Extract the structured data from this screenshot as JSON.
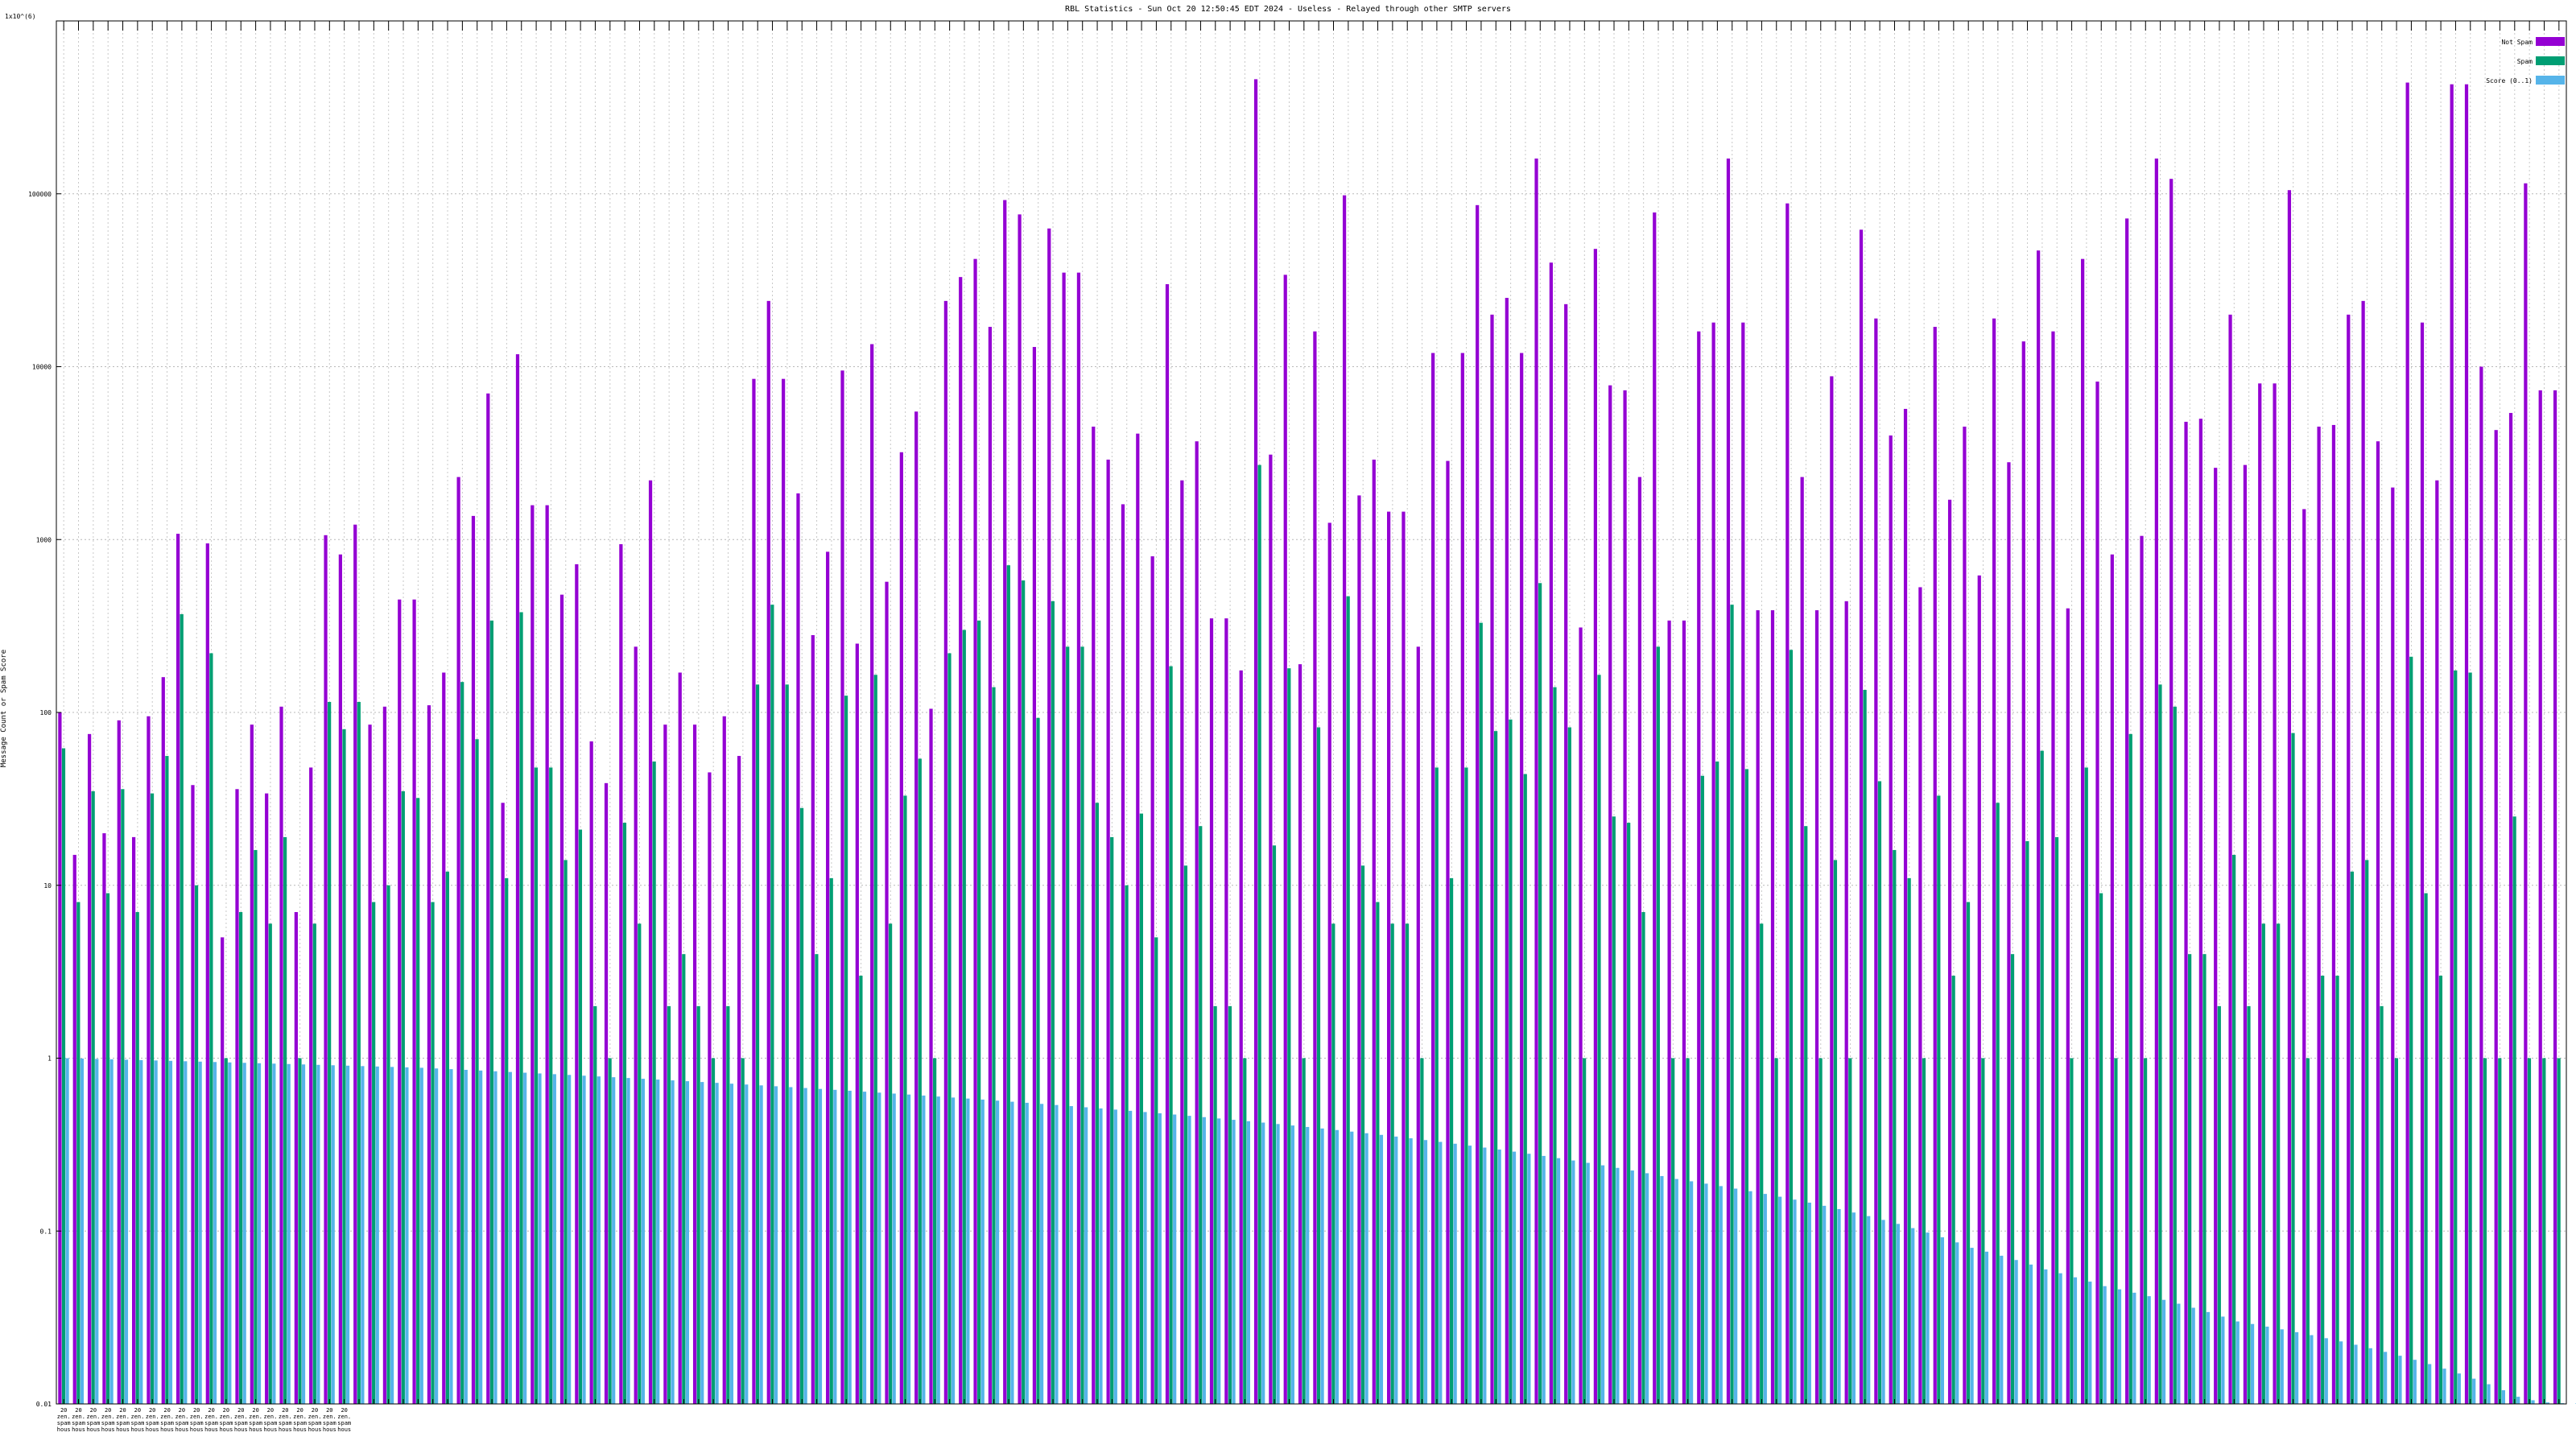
{
  "chart_data": {
    "type": "bar",
    "title": "RBL Statistics - Sun Oct 20 12:50:45 EDT 2024 - Useless - Relayed through other SMTP servers",
    "ylabel": "Message Count or Spam Score",
    "y_scale": "log",
    "ylim": [
      0.01,
      1000000
    ],
    "y_ticks": [
      {
        "value": 0.01,
        "label": "0.01"
      },
      {
        "value": 0.1,
        "label": "0.1"
      },
      {
        "value": 1,
        "label": "1"
      },
      {
        "value": 10,
        "label": "10"
      },
      {
        "value": 100,
        "label": "100"
      },
      {
        "value": 1000,
        "label": "1000"
      },
      {
        "value": 10000,
        "label": "10000"
      },
      {
        "value": 100000,
        "label": "100000"
      },
      {
        "value": 1000000,
        "label": "1x10^(6)"
      }
    ],
    "grid": true,
    "legend_position": "top-right",
    "category_label_lines": [
      [
        "20 ",
        "20 ",
        "20 ",
        "20 ",
        "20 ",
        "20 ",
        "20 ",
        "20 ",
        "20 ",
        "20 ",
        "20 ",
        "20 ",
        "20 ",
        "20 ",
        "20 ",
        "20 ",
        "20 ",
        "20 ",
        "20 ",
        "20 "
      ],
      [
        "zen. ",
        "zen. ",
        "zen. ",
        "zen. ",
        "zen. ",
        "zen. ",
        "zen. ",
        "zen. ",
        "zen. ",
        "zen. ",
        "zen. ",
        "zen. ",
        "zen. ",
        "zen. ",
        "zen. ",
        "zen. ",
        "zen. ",
        "zen. ",
        "zen. ",
        "zen. "
      ],
      [
        "spam",
        "spam",
        "spam",
        "spam",
        "spam",
        "spam",
        "spam",
        "spam",
        "spam",
        "spam",
        "spam",
        "spam",
        "spam",
        "spam",
        "spam",
        "spam",
        "spam",
        "spam",
        "spam",
        "spam"
      ],
      [
        "hous",
        "hous",
        "hous",
        "hous",
        "hous",
        "hous",
        "hous",
        "hous",
        "hous",
        "hous",
        "hous",
        "hous",
        "hous",
        "hous",
        "hous",
        "hous",
        "hous",
        "hous",
        "hous",
        "hous"
      ]
    ],
    "series": [
      {
        "name": "Not Spam",
        "color": "#9400d3",
        "values": [
          100,
          15,
          75,
          20,
          90,
          19,
          95,
          160,
          1080,
          38,
          950,
          5,
          36,
          85,
          34,
          108,
          7,
          48,
          1060,
          820,
          1220,
          85,
          108,
          450,
          450,
          110,
          170,
          2300,
          1370,
          7000,
          30,
          11800,
          1580,
          1580,
          480,
          720,
          68,
          39,
          940,
          240,
          2200,
          85,
          170,
          85,
          45,
          95,
          56,
          8500,
          24000,
          8500,
          1850,
          280,
          850,
          9500,
          250,
          13500,
          570,
          3200,
          5500,
          105,
          24000,
          33000,
          42000,
          17000,
          92000,
          76000,
          13000,
          63000,
          35000,
          35000,
          4500,
          2900,
          1600,
          4100,
          800,
          30000,
          2200,
          3700,
          350,
          350,
          175,
          460000,
          3100,
          34000,
          190,
          16000,
          1250,
          98000,
          1800,
          2900,
          1450,
          1450,
          240,
          12000,
          2850,
          12000,
          86000,
          20000,
          25000,
          12000,
          160000,
          40000,
          23000,
          310,
          48000,
          7800,
          7300,
          2300,
          78000,
          340,
          340,
          16000,
          18000,
          160000,
          18000,
          390,
          390,
          88000,
          2300,
          390,
          8800,
          440,
          62000,
          19000,
          4000,
          5700,
          530,
          17000,
          1700,
          4500,
          620,
          19000,
          2800,
          14000,
          47000,
          16000,
          400,
          42000,
          8200,
          820,
          72000,
          1050,
          160000,
          122000,
          4800,
          5000,
          2600,
          20000,
          2700,
          8000,
          8000,
          105000,
          1500,
          4500,
          4600,
          20000,
          24000,
          3700,
          2000,
          440000,
          18000,
          2200,
          430000,
          430000,
          10000,
          4300,
          5400,
          115000,
          7300,
          7300
        ]
      },
      {
        "name": "Spam",
        "color": "#009e73",
        "values": [
          62,
          8,
          35,
          9,
          36,
          7,
          34,
          56,
          370,
          10,
          220,
          1,
          7,
          16,
          6,
          19,
          1,
          6,
          115,
          80,
          115,
          8,
          10,
          35,
          32,
          8,
          12,
          150,
          70,
          340,
          11,
          380,
          48,
          48,
          14,
          21,
          2,
          1,
          23,
          6,
          52,
          2,
          4,
          2,
          1,
          2,
          1,
          145,
          420,
          145,
          28,
          4,
          11,
          125,
          3,
          165,
          6,
          33,
          54,
          1,
          220,
          300,
          340,
          140,
          710,
          580,
          93,
          440,
          240,
          240,
          30,
          19,
          10,
          26,
          5,
          185,
          13,
          22,
          2,
          2,
          1,
          2700,
          17,
          180,
          1,
          82,
          6,
          470,
          13,
          8,
          6,
          6,
          1,
          48,
          11,
          48,
          330,
          78,
          91,
          44,
          560,
          140,
          82,
          1,
          165,
          25,
          23,
          7,
          240,
          1,
          1,
          43,
          52,
          420,
          47,
          6,
          1,
          230,
          22,
          1,
          14,
          1,
          135,
          40,
          16,
          11,
          1,
          33,
          3,
          8,
          1,
          30,
          4,
          18,
          60,
          19,
          1,
          48,
          9,
          1,
          75,
          1,
          145,
          108,
          4,
          4,
          2,
          15,
          2,
          6,
          6,
          76,
          1,
          3,
          3,
          12,
          14,
          2,
          1,
          210,
          9,
          3,
          175,
          170,
          1,
          1,
          25,
          1,
          1,
          1
        ]
      },
      {
        "name": "Score (0..1)",
        "color": "#56b4e9",
        "values": [
          1,
          0.995,
          0.99,
          0.985,
          0.98,
          0.975,
          0.97,
          0.965,
          0.96,
          0.955,
          0.95,
          0.945,
          0.94,
          0.935,
          0.93,
          0.925,
          0.92,
          0.915,
          0.91,
          0.905,
          0.9,
          0.895,
          0.89,
          0.885,
          0.88,
          0.872,
          0.864,
          0.856,
          0.848,
          0.84,
          0.832,
          0.824,
          0.816,
          0.808,
          0.8,
          0.792,
          0.784,
          0.776,
          0.768,
          0.76,
          0.752,
          0.744,
          0.736,
          0.728,
          0.72,
          0.712,
          0.704,
          0.696,
          0.688,
          0.68,
          0.672,
          0.664,
          0.656,
          0.648,
          0.64,
          0.632,
          0.624,
          0.616,
          0.608,
          0.6,
          0.592,
          0.584,
          0.576,
          0.568,
          0.56,
          0.552,
          0.544,
          0.536,
          0.528,
          0.52,
          0.512,
          0.504,
          0.496,
          0.488,
          0.48,
          0.472,
          0.464,
          0.456,
          0.448,
          0.44,
          0.432,
          0.424,
          0.416,
          0.408,
          0.4,
          0.392,
          0.384,
          0.376,
          0.368,
          0.36,
          0.352,
          0.344,
          0.336,
          0.328,
          0.32,
          0.312,
          0.304,
          0.296,
          0.288,
          0.28,
          0.272,
          0.264,
          0.256,
          0.248,
          0.24,
          0.232,
          0.224,
          0.216,
          0.208,
          0.2,
          0.194,
          0.188,
          0.182,
          0.176,
          0.17,
          0.164,
          0.158,
          0.152,
          0.146,
          0.14,
          0.134,
          0.128,
          0.122,
          0.116,
          0.11,
          0.104,
          0.098,
          0.092,
          0.086,
          0.08,
          0.076,
          0.072,
          0.068,
          0.064,
          0.06,
          0.057,
          0.054,
          0.051,
          0.048,
          0.046,
          0.044,
          0.042,
          0.04,
          0.038,
          0.036,
          0.034,
          0.032,
          0.03,
          0.029,
          0.028,
          0.027,
          0.026,
          0.025,
          0.024,
          0.023,
          0.022,
          0.021,
          0.02,
          0.019,
          0.018,
          0.017,
          0.016,
          0.015,
          0.014,
          0.013,
          0.012,
          0.011,
          0.0105,
          0.0102,
          0.0101,
          0.0101,
          0.0101
        ]
      }
    ]
  }
}
